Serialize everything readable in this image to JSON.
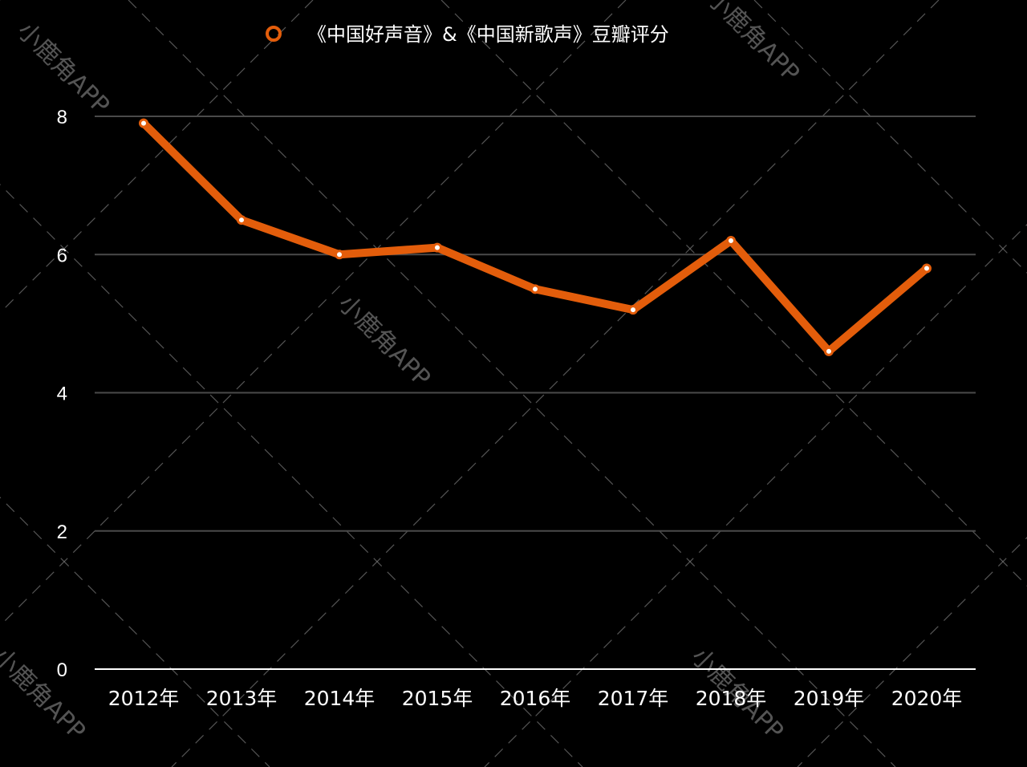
{
  "chart_data": {
    "type": "line",
    "legend": {
      "placement": "top-center",
      "label": "《中国好声音》&《中国新歌声》豆瓣评分"
    },
    "categories": [
      "2012年",
      "2013年",
      "2014年",
      "2015年",
      "2016年",
      "2017年",
      "2018年",
      "2019年",
      "2020年"
    ],
    "series": [
      {
        "name": "《中国好声音》&《中国新歌声》豆瓣评分",
        "values": [
          7.9,
          6.5,
          6.0,
          6.1,
          5.5,
          5.2,
          6.2,
          4.6,
          5.8
        ]
      }
    ],
    "ylim": [
      0,
      8
    ],
    "yticks": [
      "0",
      "2",
      "4",
      "6",
      "8"
    ],
    "grid": true,
    "colors": {
      "line": "#E35D0B",
      "background": "#000000",
      "grid": "#4a4a4a",
      "axis": "#ffffff",
      "marker_fill": "#ffffff"
    }
  },
  "watermark": {
    "text": "小鹿角APP"
  }
}
